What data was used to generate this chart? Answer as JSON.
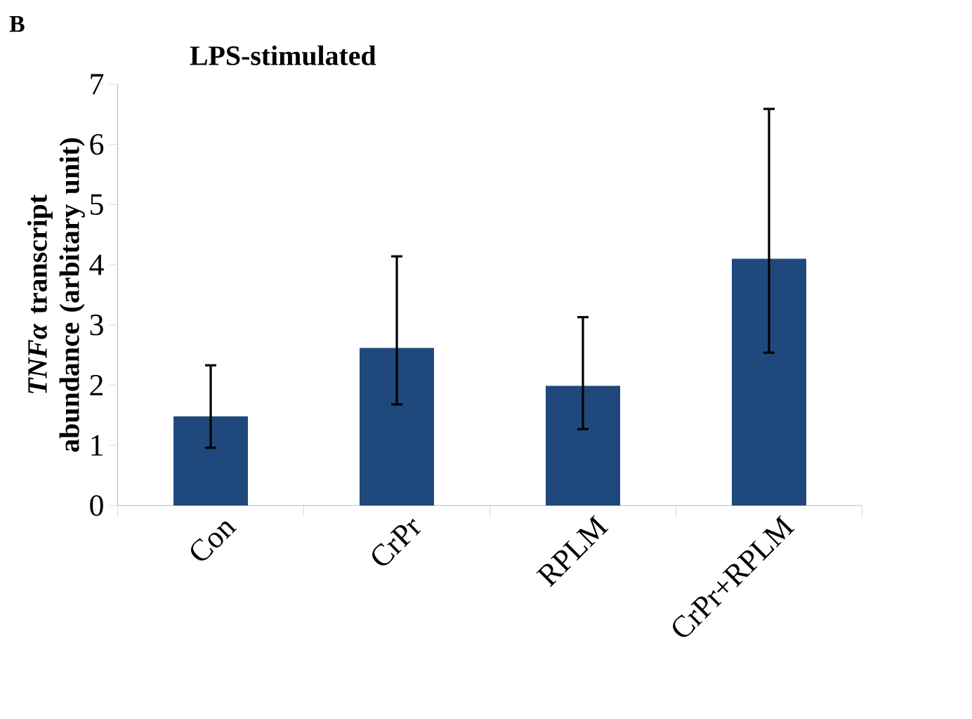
{
  "chart_data": {
    "type": "bar",
    "title": "LPS-stimulated",
    "ylabel": "*TNFα* transcript abundance (arbitary unit)",
    "annotations": [
      "B"
    ],
    "categories": [
      "Con",
      "CrPr",
      "RPLM",
      "CrPr+RPLM"
    ],
    "values": [
      1.48,
      2.62,
      1.99,
      4.1
    ],
    "errors": [
      [
        0.96,
        2.33
      ],
      [
        1.68,
        4.14
      ],
      [
        1.27,
        3.13
      ],
      [
        2.54,
        6.59
      ]
    ],
    "color": "#1f497d",
    "ylim": [
      0,
      7
    ],
    "yticks": [
      0,
      1,
      2,
      3,
      4,
      5,
      6,
      7
    ],
    "grid": false
  }
}
